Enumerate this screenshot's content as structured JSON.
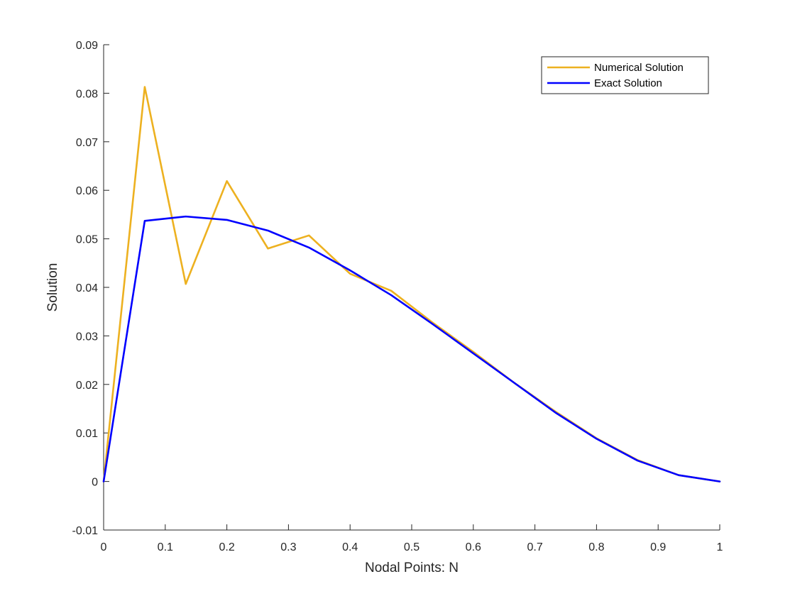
{
  "chart_data": {
    "type": "line",
    "title": "",
    "xlabel": "Nodal Points: N",
    "ylabel": "Solution",
    "xlim": [
      0,
      1
    ],
    "ylim": [
      -0.01,
      0.09
    ],
    "x_ticks": [
      0,
      0.1,
      0.2,
      0.3,
      0.4,
      0.5,
      0.6,
      0.7,
      0.8,
      0.9,
      1
    ],
    "x_tick_labels": [
      "0",
      "0.1",
      "0.2",
      "0.3",
      "0.4",
      "0.5",
      "0.6",
      "0.7",
      "0.8",
      "0.9",
      "1"
    ],
    "y_ticks": [
      -0.01,
      0,
      0.01,
      0.02,
      0.03,
      0.04,
      0.05,
      0.06,
      0.07,
      0.08,
      0.09
    ],
    "y_tick_labels": [
      "-0.01",
      "0",
      "0.01",
      "0.02",
      "0.03",
      "0.04",
      "0.05",
      "0.06",
      "0.07",
      "0.08",
      "0.09"
    ],
    "grid": false,
    "legend_position": "top-right",
    "series": [
      {
        "name": "Numerical Solution",
        "color": "#EDB120",
        "x": [
          0,
          0.0667,
          0.1333,
          0.2,
          0.2667,
          0.3333,
          0.4,
          0.4667,
          0.5333,
          0.6,
          0.6667,
          0.7333,
          0.8,
          0.8667,
          0.9333,
          1
        ],
        "y": [
          0,
          0.0813,
          0.0407,
          0.0619,
          0.048,
          0.0507,
          0.0428,
          0.0393,
          0.0328,
          0.0267,
          0.0203,
          0.0144,
          0.0089,
          0.0044,
          0.0013,
          0
        ]
      },
      {
        "name": "Exact Solution",
        "color": "#0000FF",
        "x": [
          0,
          0.0667,
          0.1333,
          0.2,
          0.2667,
          0.3333,
          0.4,
          0.4667,
          0.5333,
          0.6,
          0.6667,
          0.7333,
          0.8,
          0.8667,
          0.9333,
          1
        ],
        "y": [
          0,
          0.0537,
          0.0546,
          0.0539,
          0.0517,
          0.0482,
          0.0435,
          0.0384,
          0.0325,
          0.0264,
          0.0203,
          0.0142,
          0.0088,
          0.0043,
          0.0013,
          0
        ]
      }
    ]
  }
}
